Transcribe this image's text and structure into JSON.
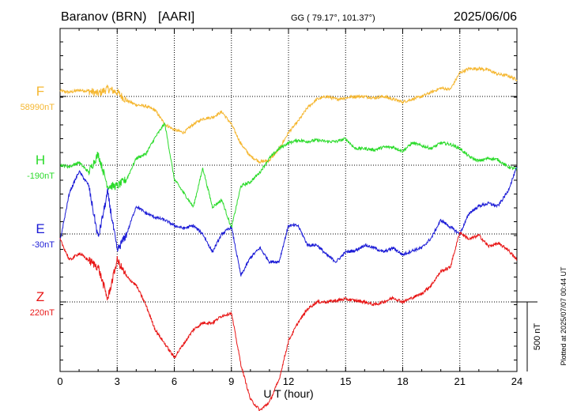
{
  "header": {
    "station": "Baranov (BRN)",
    "org": "[AARI]",
    "coords": "GG ( 79.17°, 101.37°)",
    "date": "2025/06/06"
  },
  "footer": {
    "plotted": "Plotted at 2025/07/07 00:44 UT"
  },
  "chart_data": {
    "type": "line",
    "title": "Baranov (BRN) [AARI]",
    "xlabel": "U T (hour)",
    "ylabel": "",
    "xlim": [
      0,
      24
    ],
    "xticks": [
      "0",
      "3",
      "6",
      "9",
      "12",
      "15",
      "18",
      "21",
      "24"
    ],
    "grid": true,
    "scale_bar": "500 nT",
    "series": [
      {
        "name": "F",
        "baseline_label": "58990nT",
        "color": "#f5b731",
        "x": [
          0,
          0.5,
          1,
          1.5,
          2,
          2.5,
          3,
          3.5,
          4,
          4.5,
          5,
          5.5,
          6,
          6.5,
          7,
          7.5,
          8,
          8.5,
          9,
          9.5,
          10,
          10.5,
          11,
          11.5,
          12,
          12.5,
          13,
          13.5,
          14,
          14.5,
          15,
          15.5,
          16,
          16.5,
          17,
          17.5,
          18,
          18.5,
          19,
          19.5,
          20,
          20.5,
          21,
          21.5,
          22,
          22.5,
          23,
          23.5,
          24
        ],
        "values": [
          40,
          30,
          45,
          40,
          20,
          55,
          30,
          -30,
          -60,
          -70,
          -100,
          -200,
          -240,
          -260,
          -200,
          -160,
          -150,
          -110,
          -200,
          -340,
          -430,
          -470,
          -460,
          -380,
          -260,
          -180,
          -80,
          -20,
          0,
          -20,
          -10,
          0,
          0,
          -10,
          0,
          -20,
          -40,
          -20,
          0,
          30,
          60,
          50,
          170,
          200,
          200,
          190,
          160,
          150,
          120
        ]
      },
      {
        "name": "H",
        "baseline_label": "-190nT",
        "color": "#2bdb2b",
        "x": [
          0,
          0.5,
          1,
          1.5,
          2,
          2.5,
          3,
          3.5,
          4,
          4.5,
          5,
          5.5,
          6,
          6.5,
          7,
          7.5,
          8,
          8.5,
          9,
          9.5,
          10,
          10.5,
          11,
          11.5,
          12,
          12.5,
          13,
          13.5,
          14,
          14.5,
          15,
          15.5,
          16,
          16.5,
          17,
          17.5,
          18,
          18.5,
          19,
          19.5,
          20,
          20.5,
          21,
          21.5,
          22,
          22.5,
          23,
          23.5,
          24
        ],
        "values": [
          0,
          -10,
          20,
          -50,
          80,
          -150,
          -150,
          -100,
          50,
          80,
          200,
          300,
          -100,
          -200,
          -300,
          -20,
          -300,
          -250,
          -450,
          -150,
          -120,
          -50,
          50,
          120,
          160,
          180,
          170,
          180,
          170,
          170,
          190,
          120,
          120,
          110,
          130,
          130,
          100,
          160,
          140,
          120,
          160,
          150,
          120,
          60,
          30,
          50,
          40,
          -10,
          -30
        ]
      },
      {
        "name": "E",
        "baseline_label": "-30nT",
        "color": "#1a1ad6",
        "x": [
          0,
          0.5,
          1,
          1.5,
          2,
          2.5,
          3,
          3.5,
          4,
          4.5,
          5,
          5.5,
          6,
          6.5,
          7,
          7.5,
          8,
          8.5,
          9,
          9.5,
          10,
          10.5,
          11,
          11.5,
          12,
          12.5,
          13,
          13.5,
          14,
          14.5,
          15,
          15.5,
          16,
          16.5,
          17,
          17.5,
          18,
          18.5,
          19,
          19.5,
          20,
          20.5,
          21,
          21.5,
          22,
          22.5,
          23,
          23.5,
          24
        ],
        "values": [
          -50,
          300,
          450,
          350,
          -30,
          300,
          -120,
          0,
          200,
          150,
          120,
          100,
          60,
          40,
          60,
          0,
          -130,
          0,
          50,
          -300,
          -170,
          -100,
          -200,
          -200,
          60,
          60,
          -80,
          -80,
          -150,
          -200,
          -130,
          -120,
          -80,
          -100,
          -130,
          -100,
          -150,
          -120,
          -100,
          -30,
          100,
          50,
          0,
          150,
          200,
          220,
          200,
          300,
          480
        ]
      },
      {
        "name": "Z",
        "baseline_label": "220nT",
        "color": "#e81515",
        "x": [
          0,
          0.5,
          1,
          1.5,
          2,
          2.5,
          3,
          3.5,
          4,
          4.5,
          5,
          5.5,
          6,
          6.5,
          7,
          7.5,
          8,
          8.5,
          9,
          9.5,
          10,
          10.5,
          11,
          11.5,
          12,
          12.5,
          13,
          13.5,
          14,
          14.5,
          15,
          15.5,
          16,
          16.5,
          17,
          17.5,
          18,
          18.5,
          19,
          19.5,
          20,
          20.5,
          21,
          21.5,
          22,
          22.5,
          23,
          23.5,
          24
        ],
        "values": [
          450,
          300,
          350,
          300,
          250,
          20,
          300,
          180,
          120,
          -20,
          -200,
          -300,
          -400,
          -300,
          -200,
          -150,
          -150,
          -100,
          -80,
          -450,
          -700,
          -780,
          -720,
          -560,
          -280,
          -150,
          -50,
          0,
          0,
          10,
          20,
          10,
          0,
          -20,
          0,
          30,
          0,
          30,
          60,
          120,
          220,
          250,
          500,
          450,
          480,
          400,
          420,
          380,
          300
        ]
      }
    ]
  }
}
